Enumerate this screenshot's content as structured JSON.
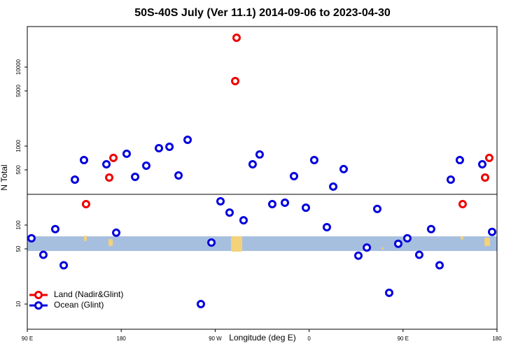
{
  "chart_data": {
    "type": "scatter",
    "title": "50S-40S July (Ver 11.1)   2014-09-06 to 2023-04-30",
    "x_label": "Longitude (deg E)",
    "y_label": "N Total",
    "log_y": true,
    "legend": "bottom-left",
    "xlim": [
      90,
      540
    ],
    "ylim": [
      4.8,
      32600
    ],
    "xticks": [
      {
        "value": 90,
        "label": "90 E"
      },
      180,
      {
        "value": 270,
        "label": "90 W"
      },
      {
        "value": 360,
        "label": "0"
      },
      {
        "value": 450,
        "label": "90 E"
      },
      {
        "value": 540,
        "label": "180"
      }
    ],
    "yticks": [
      10,
      50,
      100,
      500,
      1000,
      5000,
      10000
    ],
    "reference_line": 245,
    "shaded_band": [
      47,
      72
    ],
    "band_color": "#a7bfdf",
    "series": [
      {
        "name": "Land (Nadir&Glint)",
        "color": "#ee0000",
        "x": [
          146.3,
          168.5,
          172.5,
          290.5,
          289.2,
          507.1,
          528.6,
          532.6
        ],
        "values": [
          184,
          400,
          708,
          23550,
          6650,
          184,
          400,
          708
        ]
      },
      {
        "name": "Ocean (Glint)",
        "color": "#0000dd",
        "x": [
          94.0,
          105.4,
          116.8,
          124.9,
          135.6,
          144.3,
          165.8,
          175.2,
          185.2,
          193.3,
          204.0,
          216.1,
          226.2,
          234.9,
          243.6,
          256.3,
          266.4,
          275.1,
          283.8,
          297.2,
          305.9,
          312.6,
          324.7,
          336.8,
          345.5,
          356.9,
          364.9,
          377.0,
          383.1,
          393.1,
          407.2,
          415.3,
          425.3,
          436.7,
          445.4,
          454.1,
          465.5,
          476.9,
          485.0,
          495.7,
          504.4,
          525.9,
          535.3
        ],
        "values": [
          68,
          42,
          89,
          31,
          376,
          665,
          589,
          80,
          800,
          408,
          565,
          940,
          980,
          425,
          1200,
          10,
          60,
          200,
          144,
          115,
          589,
          783,
          184,
          192,
          416,
          166,
          665,
          94,
          307,
          511,
          41,
          52,
          160,
          13.9,
          58,
          68,
          42,
          89,
          31,
          376,
          665,
          589,
          82
        ]
      }
    ]
  }
}
